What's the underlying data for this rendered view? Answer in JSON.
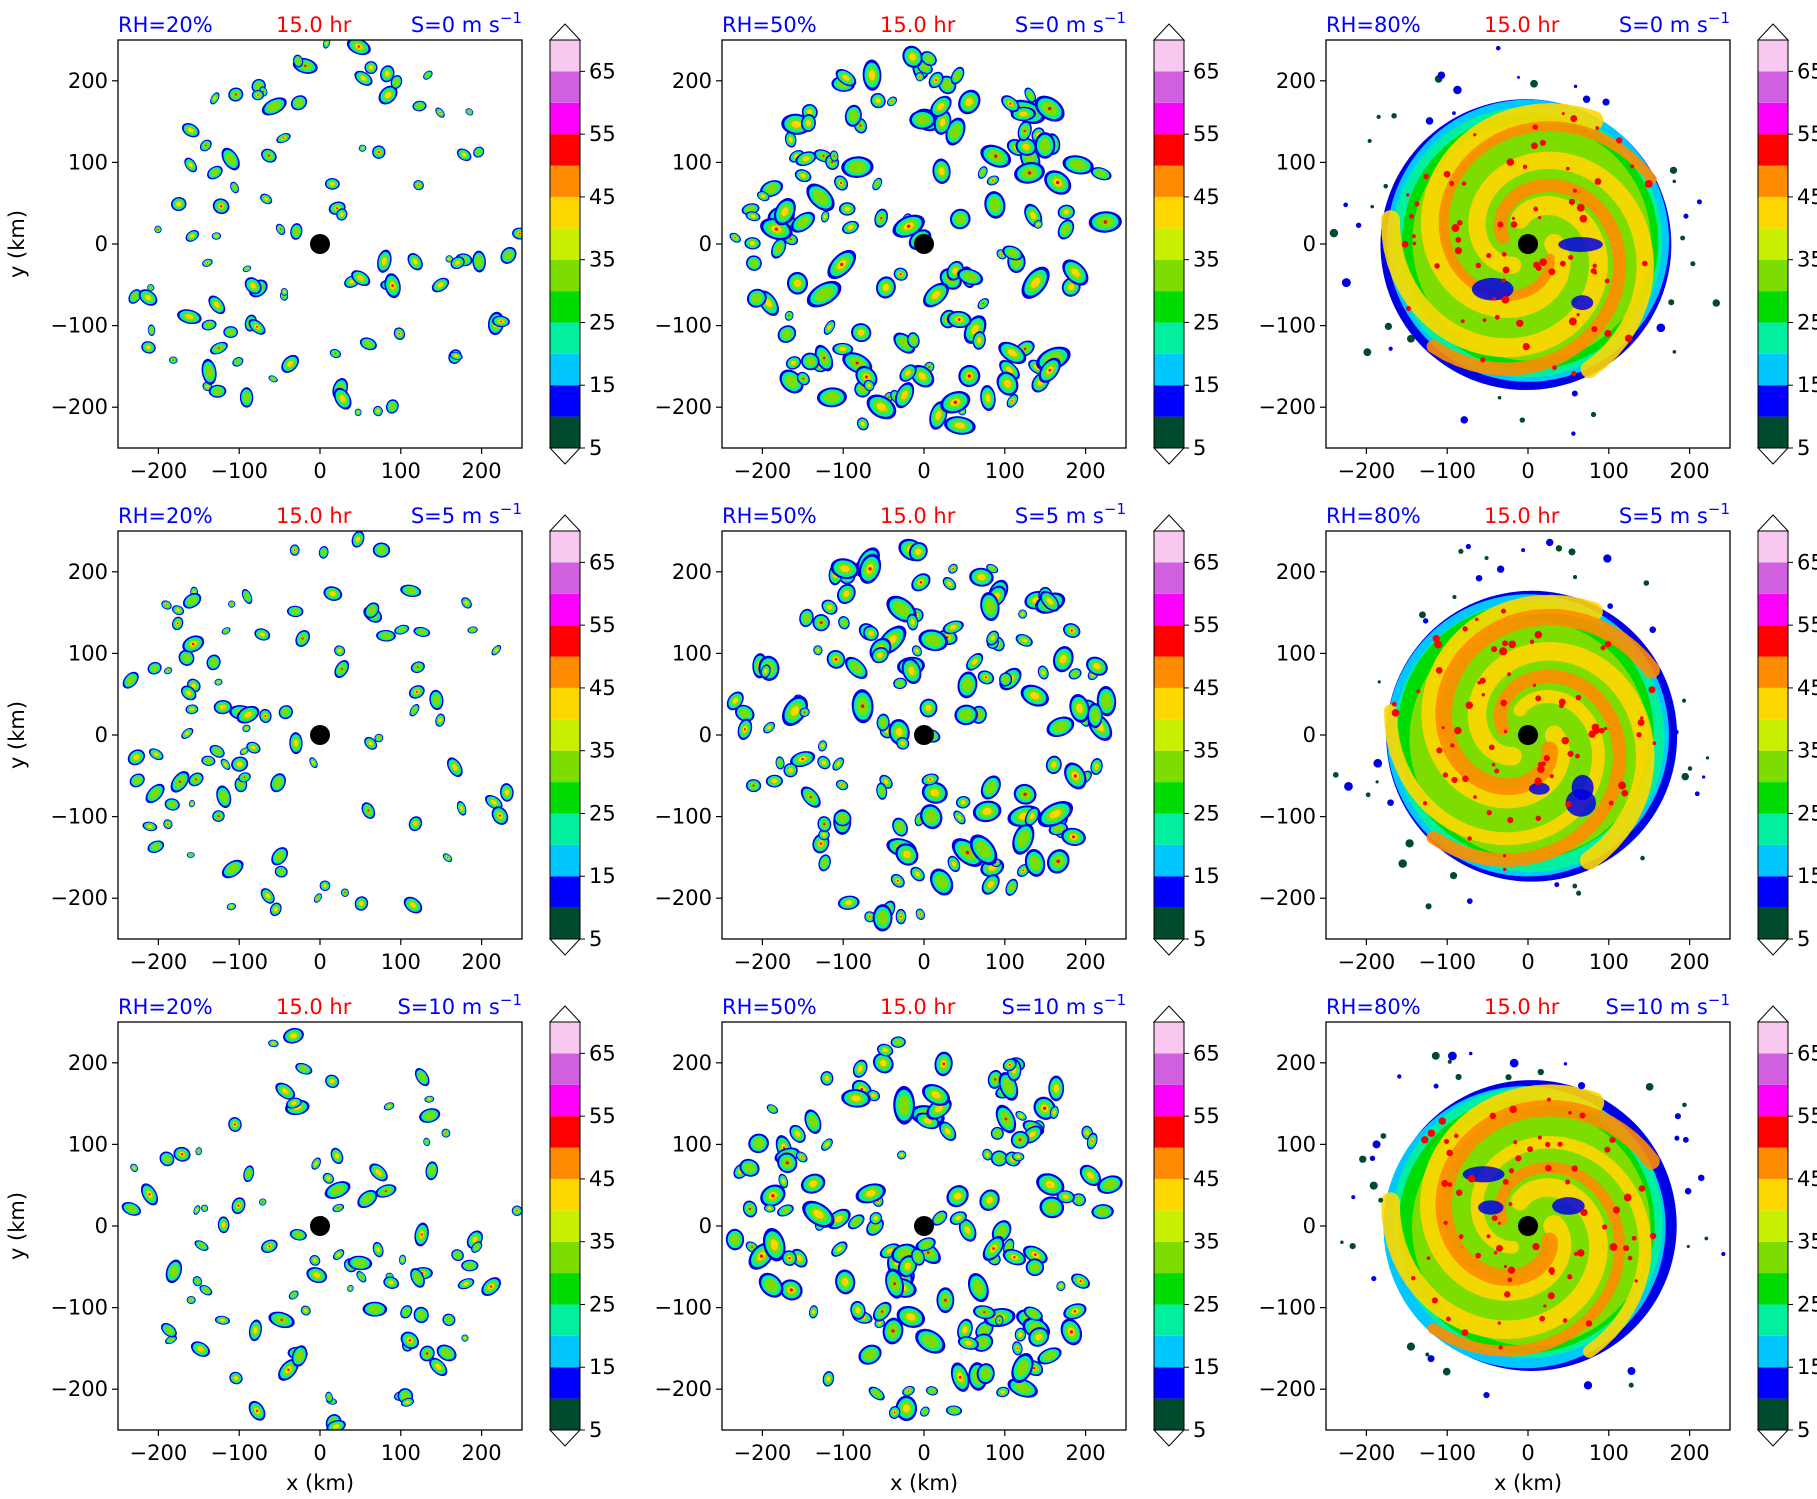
{
  "chart_data": {
    "type": "heatmap",
    "rows": 3,
    "cols": 3,
    "time_label": "15.0 hr",
    "rh_labels": [
      "RH=20%",
      "RH=50%",
      "RH=80%"
    ],
    "shear_labels": [
      "S=0 m s",
      "S=5 m s",
      "S=10 m s"
    ],
    "shear_exponent": "−1",
    "xlabel": "x (km)",
    "ylabel": "y (km)",
    "xlim": [
      -250,
      250
    ],
    "ylim": [
      -250,
      250
    ],
    "xticks": [
      -200,
      -100,
      0,
      100,
      200
    ],
    "yticks": [
      -200,
      -100,
      0,
      100,
      200
    ],
    "tick_labels": [
      "−200",
      "−100",
      "0",
      "100",
      "200"
    ],
    "storm_center": [
      0,
      0
    ],
    "colorbar": {
      "levels": [
        5,
        10,
        15,
        20,
        25,
        30,
        35,
        40,
        45,
        50,
        55,
        60,
        65,
        70
      ],
      "tick_values": [
        5,
        15,
        25,
        35,
        45,
        55,
        65
      ],
      "tick_labels": [
        "5",
        "15",
        "25",
        "35",
        "45",
        "55",
        "65"
      ],
      "colors": [
        "#004b2d",
        "#0000ff",
        "#00c8ff",
        "#00f0a0",
        "#00dc00",
        "#7ddc00",
        "#c8f000",
        "#ffd700",
        "#ff8c00",
        "#ff0000",
        "#ff00ff",
        "#d060e0",
        "#f8c8f0"
      ],
      "extend": "both"
    },
    "field_colors": {
      "outline_blue": "#0000e6",
      "teal": "#00c8ff",
      "cyan_green": "#00f0a0",
      "green": "#00dc00",
      "light_green": "#7ddc00",
      "yellow": "#ffd700",
      "orange": "#ff8c00",
      "red": "#ff0000",
      "dark_green": "#004b2d"
    },
    "panels": [
      {
        "row": 0,
        "col": 0,
        "rh": 20,
        "shear": 0
      },
      {
        "row": 0,
        "col": 1,
        "rh": 50,
        "shear": 0
      },
      {
        "row": 0,
        "col": 2,
        "rh": 80,
        "shear": 0
      },
      {
        "row": 1,
        "col": 0,
        "rh": 20,
        "shear": 5
      },
      {
        "row": 1,
        "col": 1,
        "rh": 50,
        "shear": 5
      },
      {
        "row": 1,
        "col": 2,
        "rh": 80,
        "shear": 5
      },
      {
        "row": 2,
        "col": 0,
        "rh": 20,
        "shear": 10
      },
      {
        "row": 2,
        "col": 1,
        "rh": 50,
        "shear": 10
      },
      {
        "row": 2,
        "col": 2,
        "rh": 80,
        "shear": 10
      }
    ]
  }
}
